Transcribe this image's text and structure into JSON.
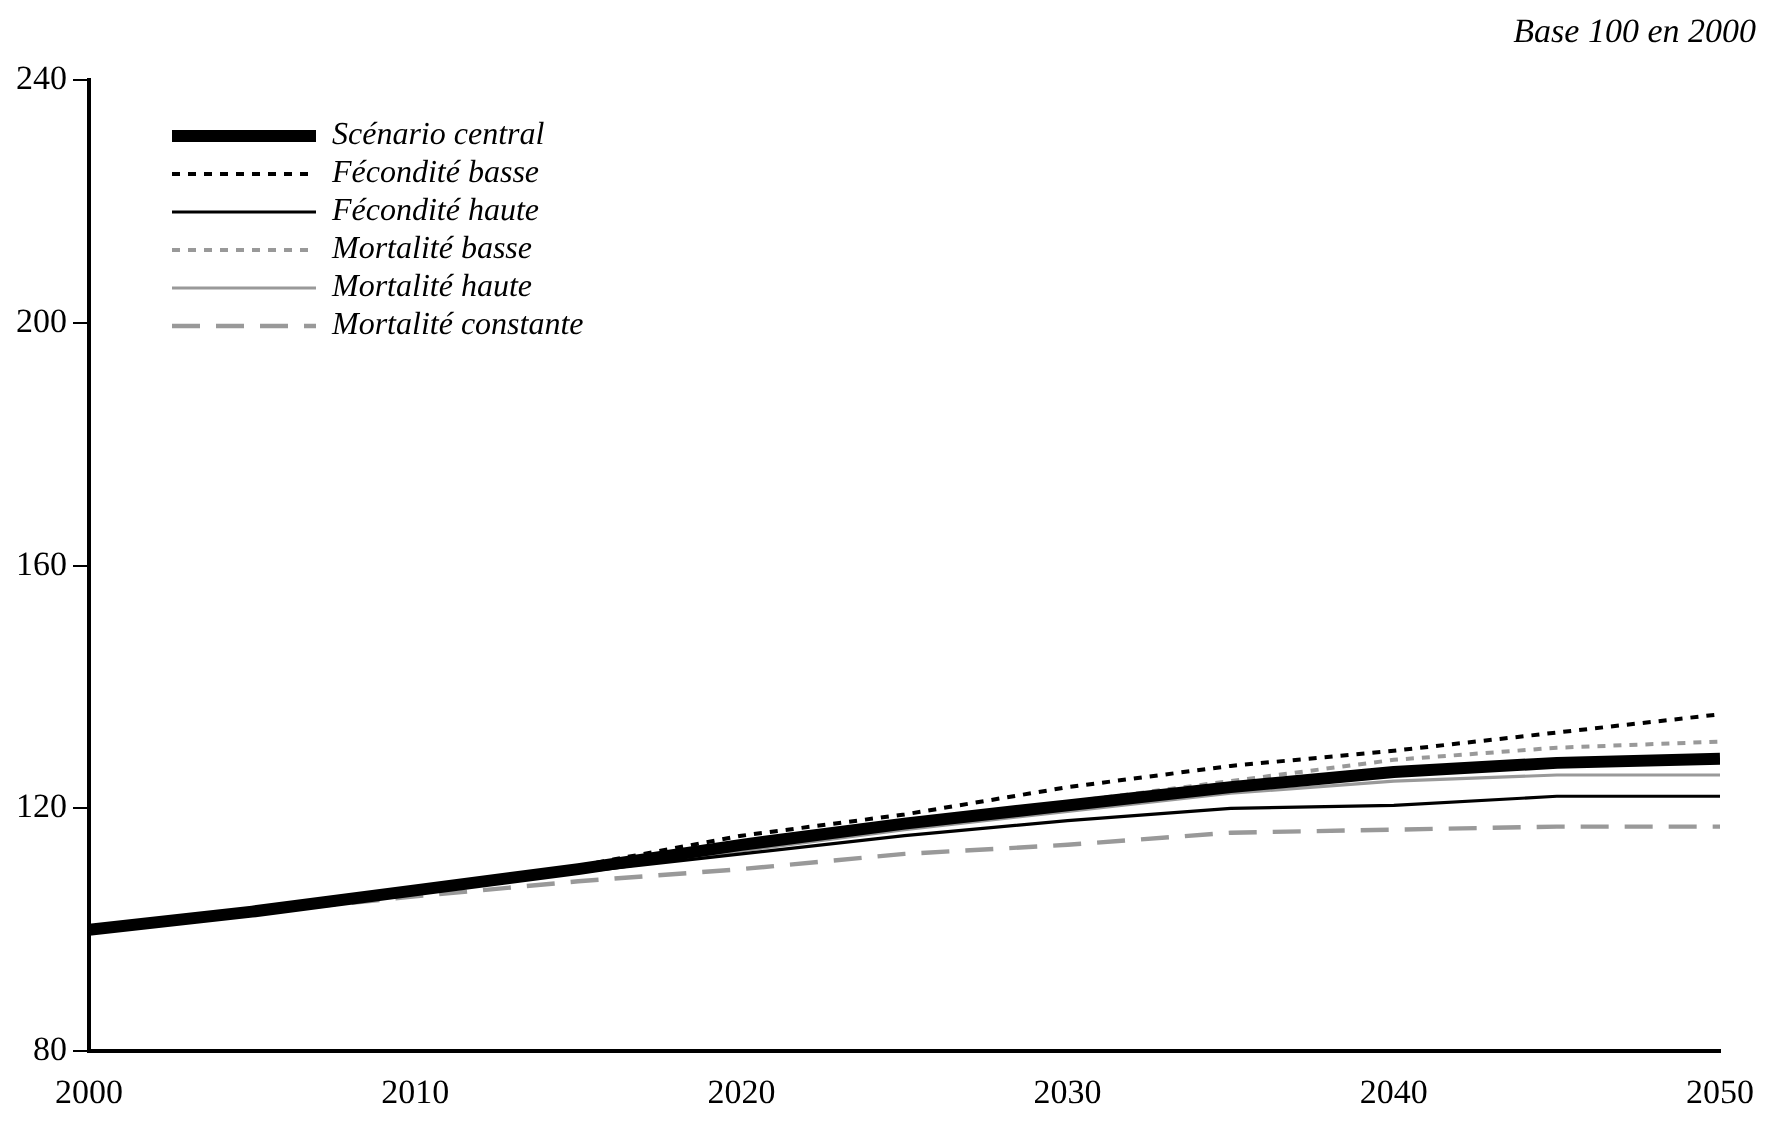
{
  "chart_data": {
    "type": "line",
    "annotations": [
      "Base 100 en 2000"
    ],
    "x": [
      2000,
      2005,
      2010,
      2015,
      2020,
      2025,
      2030,
      2035,
      2040,
      2045,
      2050
    ],
    "series": [
      {
        "name": "Scénario central",
        "color": "#000000",
        "line_style": "solid",
        "values": [
          100,
          103,
          106.5,
          110,
          114,
          117.5,
          120.5,
          123.5,
          126,
          127.5,
          128.2
        ]
      },
      {
        "name": "Fécondité basse",
        "color": "#000000",
        "line_style": "dotted",
        "values": [
          100,
          103,
          106.8,
          110.5,
          115.5,
          119,
          123.5,
          127,
          129.5,
          132.5,
          135.5
        ]
      },
      {
        "name": "Fécondité haute",
        "color": "#000000",
        "line_style": "solid",
        "values": [
          100,
          102.8,
          106,
          109.5,
          112.5,
          115.5,
          118,
          120,
          120.5,
          122,
          122
        ]
      },
      {
        "name": "Mortalité basse",
        "color": "#999999",
        "line_style": "dotted",
        "values": [
          100,
          103,
          106.5,
          110,
          114,
          117.5,
          121,
          124.5,
          128,
          130,
          131
        ]
      },
      {
        "name": "Mortalité haute",
        "color": "#999999",
        "line_style": "solid",
        "values": [
          100,
          103,
          106.3,
          109.5,
          113,
          116.5,
          119.5,
          122.5,
          124.5,
          125.5,
          125.5
        ]
      },
      {
        "name": "Mortalité constante",
        "color": "#999999",
        "line_style": "dashed",
        "values": [
          100,
          102.8,
          105.5,
          108,
          110,
          112.5,
          114,
          116,
          116.5,
          117,
          117
        ]
      }
    ],
    "xlim": [
      2000,
      2050
    ],
    "xticks": [
      2000,
      2010,
      2020,
      2030,
      2040,
      2050
    ],
    "ylim": [
      80,
      240
    ],
    "yticks": [
      80,
      120,
      160,
      200,
      240
    ],
    "grid": false,
    "legend": "top left",
    "marker": "none"
  }
}
